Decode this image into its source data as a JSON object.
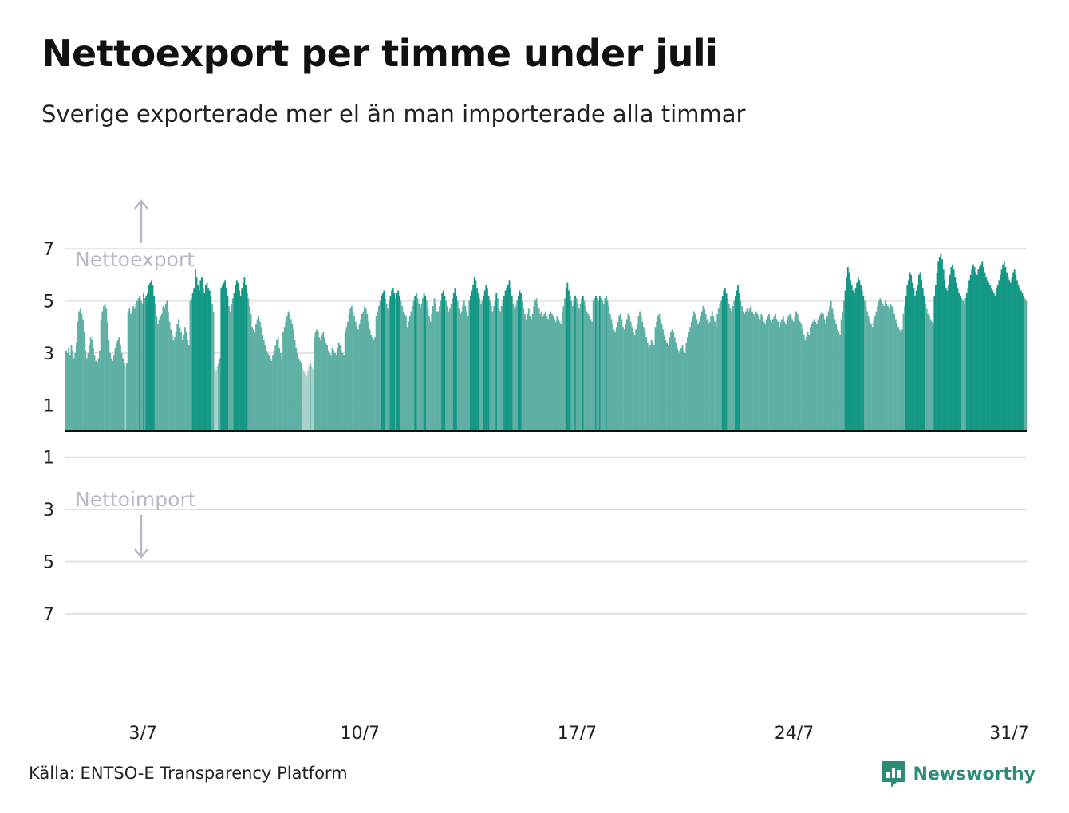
{
  "title": "Nettoexport per timme under juli",
  "subtitle": "Sverige exporterade mer el än man importerade alla timmar",
  "source": "Källa: ENTSO-E Transparency Platform",
  "brand": {
    "name": "Newsworthy",
    "color": "#2e8b77"
  },
  "colors": {
    "bar_light": "#5fb0a4",
    "bar_dark": "#149886",
    "bar_pale": "#a8d3cb",
    "grid": "#e2e2e2",
    "axis": "#111111",
    "direction_label": "#b9b9c6"
  },
  "chart_data": {
    "type": "bar",
    "title": "Nettoexport per timme under juli",
    "subtitle": "Sverige exporterade mer el än man importerade alla timmar",
    "y_ticks_positive": [
      "7",
      "5",
      "3",
      "1"
    ],
    "y_ticks_negative": [
      "1",
      "3",
      "5",
      "7"
    ],
    "ylim": [
      -7.5,
      7.5
    ],
    "y_label_top": "Nettoexport",
    "y_label_bottom": "Nettoimport",
    "x_tick_labels": [
      "3/7",
      "10/7",
      "17/7",
      "24/7",
      "31/7"
    ],
    "x_tick_days": [
      3,
      10,
      17,
      24,
      31
    ],
    "grid": true,
    "legend": "none",
    "series": [
      {
        "unit": "per day (24 hourly values)",
        "daily_values": [
          [
            3.1,
            3.0,
            3.2,
            2.9,
            3.3,
            3.1,
            2.8,
            3.0,
            3.4,
            4.2,
            4.6,
            4.7,
            4.5,
            4.3,
            3.8,
            3.1,
            2.8,
            3.0,
            3.3,
            3.6,
            3.5,
            3.2,
            2.9,
            2.7
          ],
          [
            2.6,
            2.8,
            3.1,
            4.3,
            4.6,
            4.8,
            4.9,
            4.7,
            4.2,
            3.5,
            3.0,
            2.8,
            2.7,
            2.9,
            3.2,
            3.4,
            3.5,
            3.6,
            3.3,
            3.0,
            2.8,
            2.6,
            2.5,
            2.6
          ],
          [
            4.6,
            4.7,
            4.5,
            4.6,
            4.8,
            4.7,
            4.9,
            5.0,
            5.1,
            5.2,
            5.0,
            4.9,
            5.3,
            5.1,
            5.2,
            5.3,
            5.6,
            5.7,
            5.8,
            5.6,
            5.2,
            4.9,
            4.4,
            4.1
          ],
          [
            4.3,
            4.4,
            4.5,
            4.8,
            4.7,
            4.9,
            5.0,
            4.6,
            4.2,
            3.9,
            3.7,
            3.5,
            3.6,
            3.8,
            4.1,
            4.3,
            4.0,
            3.8,
            3.5,
            3.7,
            4.0,
            3.8,
            3.5,
            3.3
          ],
          [
            5.0,
            5.1,
            5.3,
            5.5,
            6.2,
            5.9,
            5.6,
            5.4,
            5.8,
            5.9,
            5.5,
            5.3,
            5.6,
            5.7,
            5.5,
            5.4,
            5.2,
            4.9,
            4.6,
            2.4,
            2.3,
            2.5,
            2.6,
            2.8
          ],
          [
            5.5,
            5.6,
            5.7,
            5.8,
            5.5,
            5.2,
            4.8,
            4.6,
            4.9,
            5.1,
            5.3,
            5.6,
            5.8,
            5.7,
            5.4,
            5.2,
            5.5,
            5.7,
            5.9,
            5.6,
            5.3,
            5.1,
            4.8,
            4.5
          ],
          [
            4.0,
            3.9,
            3.8,
            4.1,
            4.3,
            4.4,
            4.2,
            4.0,
            3.7,
            3.5,
            3.3,
            3.1,
            3.0,
            2.9,
            2.8,
            2.7,
            2.9,
            3.1,
            3.3,
            3.5,
            3.6,
            3.2,
            3.0,
            2.8
          ],
          [
            3.8,
            4.0,
            4.2,
            4.4,
            4.6,
            4.5,
            4.3,
            4.1,
            3.9,
            3.5,
            3.2,
            3.0,
            2.8,
            2.7,
            2.6,
            2.4,
            2.3,
            2.2,
            2.1,
            2.3,
            2.5,
            2.6,
            2.5,
            2.4
          ],
          [
            3.6,
            3.8,
            3.9,
            3.8,
            3.6,
            3.5,
            3.7,
            3.8,
            3.6,
            3.4,
            3.3,
            3.1,
            3.0,
            2.9,
            3.2,
            3.1,
            3.0,
            2.9,
            3.2,
            3.4,
            3.3,
            3.1,
            3.0,
            2.9
          ],
          [
            3.8,
            4.0,
            4.2,
            4.5,
            4.7,
            4.8,
            4.6,
            4.4,
            4.2,
            4.0,
            3.9,
            4.1,
            4.3,
            4.5,
            4.6,
            4.8,
            4.7,
            4.5,
            4.2,
            3.9,
            3.7,
            3.6,
            3.5,
            3.6
          ],
          [
            4.4,
            4.6,
            4.8,
            5.0,
            5.2,
            5.3,
            5.4,
            5.1,
            4.9,
            4.7,
            5.0,
            5.2,
            5.4,
            5.5,
            5.3,
            5.1,
            5.3,
            5.4,
            5.2,
            5.0,
            4.8,
            4.6,
            4.5,
            4.4
          ],
          [
            4.0,
            4.2,
            4.4,
            4.6,
            4.8,
            5.0,
            5.2,
            5.3,
            5.1,
            4.9,
            4.7,
            4.9,
            5.1,
            5.3,
            5.2,
            5.0,
            4.7,
            4.4,
            4.2,
            4.5,
            4.8,
            5.1,
            4.9,
            4.6
          ],
          [
            4.6,
            4.8,
            5.0,
            5.3,
            5.4,
            5.2,
            5.0,
            4.8,
            4.6,
            4.7,
            4.9,
            5.1,
            5.3,
            5.5,
            5.2,
            5.0,
            4.7,
            4.5,
            4.6,
            4.8,
            5.0,
            4.8,
            4.6,
            4.4
          ],
          [
            5.0,
            5.2,
            5.4,
            5.6,
            5.9,
            5.8,
            5.5,
            5.3,
            5.1,
            4.9,
            5.0,
            5.2,
            5.4,
            5.6,
            5.5,
            5.2,
            5.0,
            4.8,
            4.6,
            4.8,
            5.0,
            5.3,
            5.1,
            4.7
          ],
          [
            4.6,
            4.8,
            5.0,
            5.2,
            5.4,
            5.5,
            5.6,
            5.8,
            5.5,
            5.2,
            4.9,
            4.7,
            4.8,
            5.0,
            5.2,
            5.4,
            5.3,
            5.0,
            4.7,
            4.5,
            4.3,
            4.5,
            4.7,
            4.4
          ],
          [
            4.3,
            4.5,
            4.8,
            5.0,
            5.1,
            4.9,
            4.7,
            4.5,
            4.6,
            4.4,
            4.5,
            4.6,
            4.4,
            4.3,
            4.5,
            4.6,
            4.5,
            4.4,
            4.3,
            4.2,
            4.4,
            4.3,
            4.2,
            4.1
          ],
          [
            4.6,
            4.8,
            5.1,
            5.5,
            5.7,
            5.4,
            5.2,
            5.0,
            4.8,
            5.0,
            5.2,
            5.1,
            4.9,
            4.7,
            4.9,
            5.1,
            5.2,
            5.0,
            4.8,
            4.6,
            4.5,
            4.4,
            4.3,
            4.2
          ],
          [
            5.0,
            5.1,
            5.2,
            5.1,
            5.0,
            5.2,
            5.1,
            5.0,
            4.9,
            5.1,
            5.2,
            5.0,
            4.8,
            4.5,
            4.3,
            4.1,
            3.9,
            3.8,
            4.0,
            4.2,
            4.4,
            4.5,
            4.3,
            4.0
          ],
          [
            3.9,
            4.1,
            4.3,
            4.5,
            4.4,
            4.2,
            4.0,
            3.8,
            3.7,
            3.9,
            4.1,
            4.4,
            4.6,
            4.4,
            4.2,
            4.0,
            3.8,
            3.6,
            3.4,
            3.2,
            3.3,
            3.5,
            3.4,
            3.3
          ],
          [
            4.0,
            4.2,
            4.4,
            4.5,
            4.3,
            4.1,
            3.9,
            3.7,
            3.5,
            3.4,
            3.3,
            3.6,
            3.8,
            3.9,
            3.8,
            3.6,
            3.4,
            3.2,
            3.1,
            3.0,
            3.2,
            3.3,
            3.1,
            3.0
          ],
          [
            3.4,
            3.6,
            3.8,
            4.0,
            4.2,
            4.4,
            4.6,
            4.5,
            4.3,
            4.1,
            4.2,
            4.4,
            4.6,
            4.8,
            4.7,
            4.5,
            4.3,
            4.1,
            4.2,
            4.4,
            4.6,
            4.4,
            4.2,
            4.0
          ],
          [
            4.5,
            4.7,
            4.9,
            5.0,
            5.2,
            5.4,
            5.5,
            5.3,
            5.1,
            4.9,
            4.7,
            4.6,
            4.8,
            5.0,
            5.2,
            5.4,
            5.6,
            5.3,
            5.0,
            4.8,
            4.6,
            4.5,
            4.6,
            4.7
          ],
          [
            4.6,
            4.7,
            4.8,
            4.6,
            4.5,
            4.4,
            4.6,
            4.5,
            4.4,
            4.3,
            4.5,
            4.4,
            4.2,
            4.1,
            4.3,
            4.4,
            4.5,
            4.3,
            4.2,
            4.3,
            4.4,
            4.5,
            4.3,
            4.2
          ],
          [
            4.0,
            4.2,
            4.3,
            4.4,
            4.2,
            4.1,
            4.3,
            4.4,
            4.5,
            4.4,
            4.3,
            4.2,
            4.4,
            4.6,
            4.5,
            4.3,
            4.2,
            4.1,
            3.9,
            3.7,
            3.5,
            3.6,
            3.8,
            3.7
          ],
          [
            4.0,
            4.1,
            4.2,
            4.3,
            4.2,
            4.1,
            4.3,
            4.4,
            4.5,
            4.6,
            4.5,
            4.3,
            4.1,
            4.4,
            4.6,
            4.8,
            5.0,
            4.7,
            4.5,
            4.3,
            4.1,
            3.9,
            3.8,
            3.7
          ],
          [
            4.3,
            4.6,
            5.0,
            5.4,
            5.9,
            6.3,
            6.1,
            5.8,
            5.6,
            5.4,
            5.3,
            5.5,
            5.7,
            5.9,
            5.8,
            5.6,
            5.4,
            5.2,
            5.0,
            4.8,
            4.6,
            4.4,
            4.2,
            4.1
          ],
          [
            4.0,
            4.2,
            4.4,
            4.6,
            4.8,
            5.0,
            5.1,
            5.0,
            4.9,
            4.8,
            5.0,
            4.9,
            4.8,
            4.7,
            4.9,
            4.8,
            4.7,
            4.5,
            4.3,
            4.1,
            4.0,
            3.9,
            3.8,
            3.9
          ],
          [
            4.5,
            4.8,
            5.2,
            5.6,
            5.8,
            6.1,
            6.0,
            5.7,
            5.5,
            5.2,
            5.4,
            5.6,
            6.0,
            6.1,
            5.8,
            5.5,
            5.2,
            4.9,
            4.7,
            4.5,
            4.4,
            4.3,
            4.2,
            4.1
          ],
          [
            5.2,
            5.6,
            6.1,
            6.5,
            6.7,
            6.8,
            6.6,
            6.2,
            5.8,
            5.5,
            5.4,
            5.6,
            6.0,
            6.3,
            6.4,
            6.2,
            5.9,
            5.7,
            5.5,
            5.3,
            5.2,
            5.1,
            5.0,
            4.9
          ],
          [
            5.1,
            5.3,
            5.5,
            5.8,
            6.0,
            6.2,
            6.4,
            6.3,
            6.1,
            6.0,
            6.2,
            6.3,
            6.4,
            6.5,
            6.3,
            6.1,
            5.9,
            5.8,
            5.7,
            5.6,
            5.5,
            5.4,
            5.3,
            5.2
          ],
          [
            5.5,
            5.6,
            5.8,
            6.0,
            6.2,
            6.4,
            6.5,
            6.3,
            6.1,
            5.9,
            5.8,
            5.7,
            5.9,
            6.1,
            6.2,
            6.0,
            5.8,
            5.6,
            5.5,
            5.4,
            5.3,
            5.2,
            5.1,
            5.0
          ]
        ]
      }
    ]
  }
}
